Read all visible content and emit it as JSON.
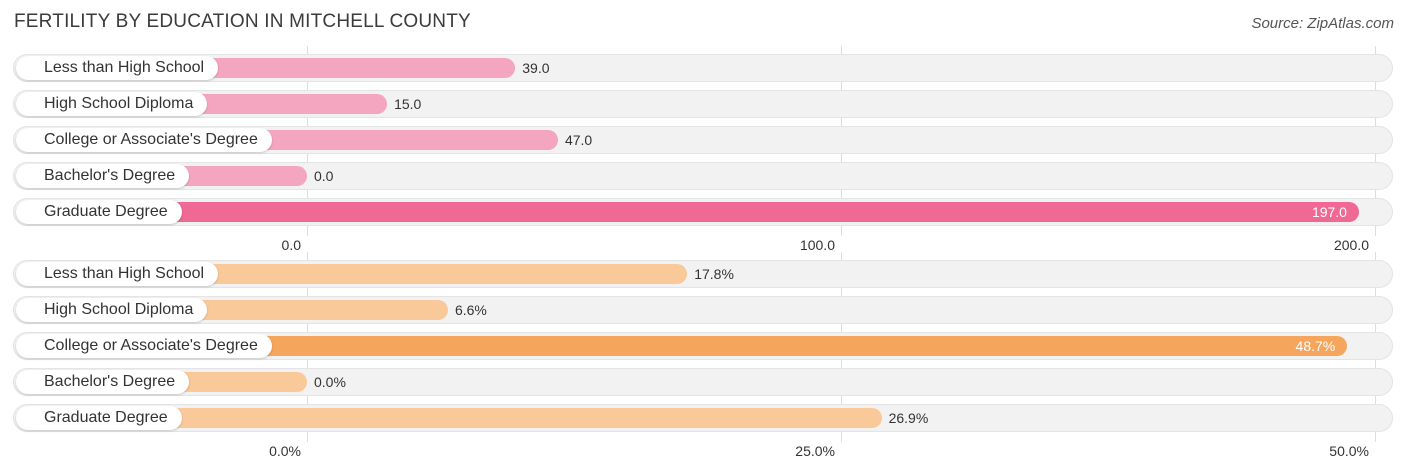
{
  "title": "FERTILITY BY EDUCATION IN MITCHELL COUNTY",
  "source": "Source: ZipAtlas.com",
  "chart_data": [
    {
      "type": "bar",
      "orientation": "horizontal",
      "categories": [
        "Less than High School",
        "High School Diploma",
        "College or Associate's Degree",
        "Bachelor's Degree",
        "Graduate Degree"
      ],
      "values": [
        39.0,
        15.0,
        47.0,
        0.0,
        197.0
      ],
      "value_labels": [
        "39.0",
        "15.0",
        "47.0",
        "0.0",
        "197.0"
      ],
      "ticks": [
        "0.0",
        "100.0",
        "200.0"
      ],
      "xlim": [
        0,
        200
      ],
      "grid": true,
      "colors": {
        "normal": "#f4a5c0",
        "highlight": "#f06894"
      }
    },
    {
      "type": "bar",
      "orientation": "horizontal",
      "categories": [
        "Less than High School",
        "High School Diploma",
        "College or Associate's Degree",
        "Bachelor's Degree",
        "Graduate Degree"
      ],
      "values": [
        17.8,
        6.6,
        48.7,
        0.0,
        26.9
      ],
      "value_labels": [
        "17.8%",
        "6.6%",
        "48.7%",
        "0.0%",
        "26.9%"
      ],
      "ticks": [
        "0.0%",
        "25.0%",
        "50.0%"
      ],
      "xlim": [
        0,
        50
      ],
      "grid": true,
      "colors": {
        "normal": "#f9c99a",
        "highlight": "#f5a55c"
      }
    }
  ]
}
